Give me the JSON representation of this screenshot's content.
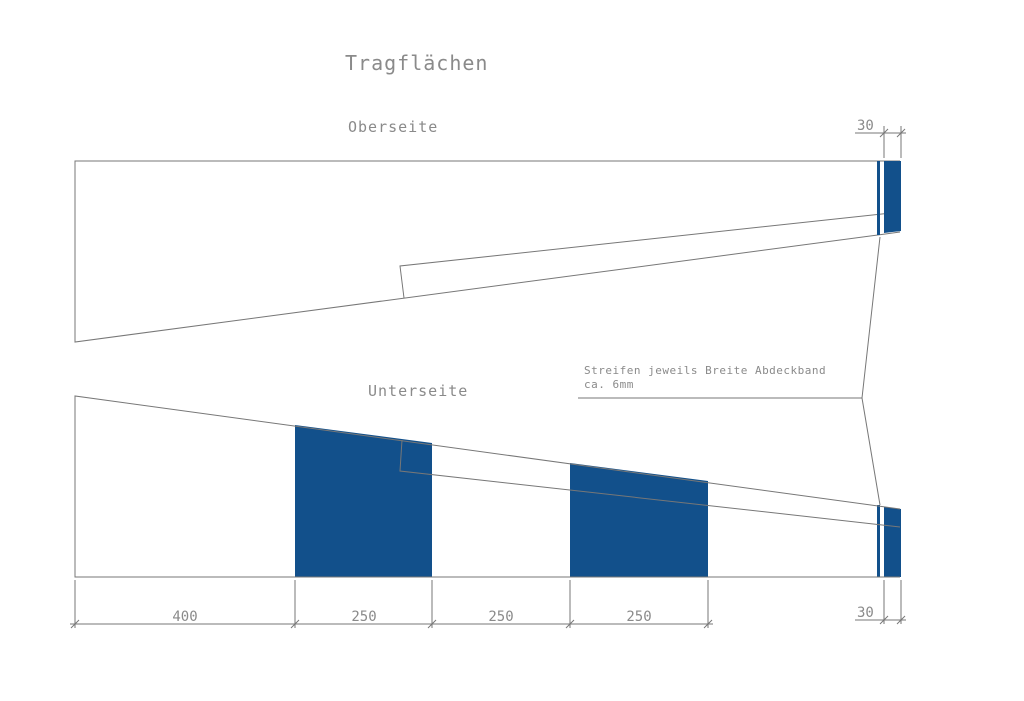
{
  "drawing": {
    "title": "Tragflächen",
    "top_view_label": "Oberseite",
    "bottom_view_label": "Unterseite",
    "note_line1": "Streifen jeweils Breite Abdeckband",
    "note_line2": "ca. 6mm",
    "accent_color": "#12508b"
  },
  "dimensions": {
    "top_tip": "30",
    "bottom_tip": "30",
    "segments": [
      "400",
      "250",
      "250",
      "250"
    ]
  }
}
